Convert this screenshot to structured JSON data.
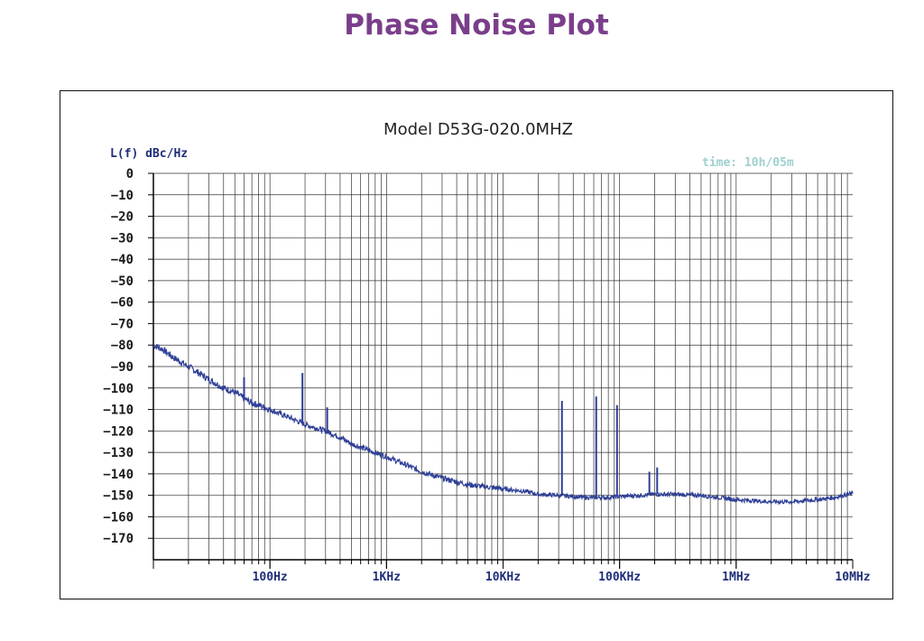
{
  "page": {
    "title": "Phase Noise Plot"
  },
  "colors": {
    "title": "#7a3e8a",
    "trace": "#2e3f96",
    "axis_text": "#1f2f7a",
    "grid": "#333333",
    "time": "#9fd0cf"
  },
  "chart_data": {
    "type": "line",
    "title": "Model D53G-020.0MHZ",
    "ylabel": "L(f) dBc/Hz",
    "time_label": "time: 10h/05m",
    "x_scale": "log",
    "xlim": [
      10,
      10000000
    ],
    "ylim": [
      -180,
      0
    ],
    "x_ticks": [
      {
        "value": 100,
        "label": "100Hz"
      },
      {
        "value": 1000,
        "label": "1KHz"
      },
      {
        "value": 10000,
        "label": "10KHz"
      },
      {
        "value": 100000,
        "label": "100KHz"
      },
      {
        "value": 1000000,
        "label": "1MHz"
      },
      {
        "value": 10000000,
        "label": "10MHz"
      }
    ],
    "y_ticks": [
      0,
      -10,
      -20,
      -30,
      -40,
      -50,
      -60,
      -70,
      -80,
      -90,
      -100,
      -110,
      -120,
      -130,
      -140,
      -150,
      -160,
      -170
    ],
    "grid": true,
    "series": [
      {
        "values_x": [
          10,
          12,
          15,
          20,
          30,
          40,
          50,
          60,
          70,
          80,
          100,
          150,
          200,
          300,
          400,
          500,
          700,
          1000,
          1500,
          2000,
          3000,
          5000,
          7000,
          10000,
          15000,
          20000,
          30000,
          40000,
          50000,
          60000,
          70000,
          80000,
          100000,
          150000,
          200000,
          300000,
          500000,
          700000,
          1000000,
          2000000,
          3000000,
          5000000,
          7000000,
          10000000
        ],
        "values_y": [
          -80,
          -82,
          -86,
          -90,
          -96,
          -100,
          -102,
          -105,
          -107,
          -108,
          -110,
          -114,
          -117,
          -120,
          -123,
          -126,
          -129,
          -132,
          -136,
          -139,
          -142,
          -145,
          -146,
          -147,
          -148,
          -149.5,
          -150,
          -150.5,
          -151,
          -151,
          -151,
          -151,
          -150.5,
          -150,
          -149.5,
          -149.5,
          -150,
          -151,
          -152,
          -153,
          -153,
          -152,
          -151,
          -149
        ]
      }
    ],
    "spurs": [
      {
        "x": 60,
        "y": -95
      },
      {
        "x": 190,
        "y": -93
      },
      {
        "x": 310,
        "y": -109
      },
      {
        "x": 32000,
        "y": -106
      },
      {
        "x": 63000,
        "y": -104
      },
      {
        "x": 95000,
        "y": -108
      },
      {
        "x": 180000,
        "y": -139
      },
      {
        "x": 210000,
        "y": -137
      }
    ]
  }
}
